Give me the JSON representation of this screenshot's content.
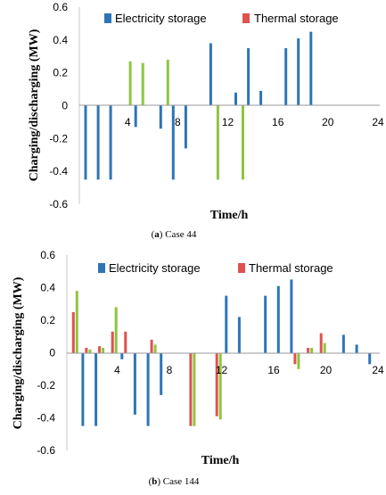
{
  "colors": {
    "electricity": "#2E75B6",
    "thermal": "#E0524F",
    "third": "#8DC63F",
    "axis": "#9A9A9A"
  },
  "chart_data": [
    {
      "type": "bar",
      "caption_label": "a",
      "caption_text": " Case 44",
      "xlabel": "Time/h",
      "ylabel": "Charging/discharging (MW)",
      "ylim": [
        -0.6,
        0.6
      ],
      "yticks": [
        "0.6",
        "0.4",
        "0.2",
        "0",
        "-0.2",
        "-0.4",
        "-0.6"
      ],
      "xticks": [
        "4",
        "8",
        "12",
        "16",
        "20",
        "24"
      ],
      "legend_position": "top",
      "series": [
        {
          "name": "Electricity storage",
          "color_key": "electricity",
          "values": [
            -0.45,
            -0.45,
            -0.45,
            0,
            -0.13,
            0,
            -0.14,
            -0.45,
            -0.26,
            0,
            0.38,
            0,
            0.08,
            0.35,
            0.09,
            0,
            0.35,
            0.41,
            0.45,
            0,
            0,
            0,
            0,
            0
          ]
        },
        {
          "name": "Thermal storage",
          "color_key": "thermal",
          "values": [
            0,
            0,
            0,
            0,
            0,
            0,
            0,
            0,
            0,
            0,
            0,
            0,
            0,
            0,
            0,
            0,
            0,
            0,
            0,
            0,
            0,
            0,
            0,
            0
          ]
        },
        {
          "color_key": "third",
          "values": [
            0,
            0,
            0,
            0.27,
            0.26,
            0,
            0.28,
            0,
            0,
            0,
            -0.45,
            0,
            -0.45,
            0,
            0,
            0,
            0,
            0,
            0,
            0,
            0,
            0,
            0,
            0
          ]
        }
      ]
    },
    {
      "type": "bar",
      "caption_label": "b",
      "caption_text": " Case 144",
      "xlabel": "Time/h",
      "ylabel": "Charging/discharging (MW)",
      "ylim": [
        -0.6,
        0.6
      ],
      "yticks": [
        "0.6",
        "0.4",
        "0.2",
        "0",
        "-0.2",
        "-0.4",
        "-0.6"
      ],
      "xticks": [
        "4",
        "8",
        "12",
        "16",
        "20",
        "24"
      ],
      "legend_position": "top",
      "series": [
        {
          "name": "Electricity storage",
          "color_key": "electricity",
          "values": [
            0,
            -0.45,
            -0.45,
            0,
            -0.04,
            -0.38,
            -0.45,
            -0.26,
            0,
            0,
            0,
            0,
            0.35,
            0.22,
            0,
            0.35,
            0.41,
            0.45,
            0,
            0,
            0,
            0.11,
            0.05,
            -0.07
          ]
        },
        {
          "name": "Thermal storage",
          "color_key": "thermal",
          "values": [
            0.25,
            0.03,
            0.04,
            0.13,
            0.13,
            0,
            0.08,
            0,
            0,
            -0.45,
            0,
            -0.39,
            0,
            0,
            0,
            0,
            0,
            -0.07,
            0.03,
            0.12,
            0,
            0,
            0,
            0
          ]
        },
        {
          "color_key": "third",
          "values": [
            0.38,
            0.02,
            0.03,
            0.28,
            0,
            0,
            0.05,
            0,
            0,
            -0.45,
            0,
            -0.41,
            0,
            0,
            0,
            0,
            0,
            -0.1,
            0.03,
            0.06,
            0,
            0,
            0,
            0
          ]
        }
      ]
    }
  ]
}
